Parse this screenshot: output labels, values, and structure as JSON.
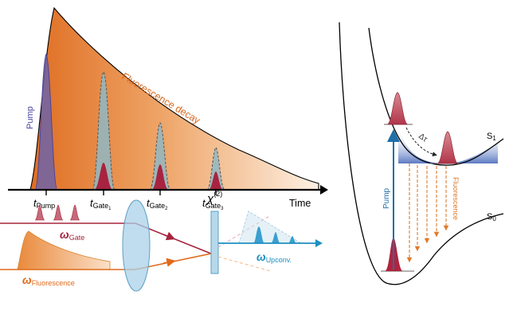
{
  "labels": {
    "pump": "Pump",
    "fluorescence_decay": "Fluorescence decay",
    "time": "Time",
    "t_symbol": "t",
    "omega_symbol": "ω",
    "chi_symbol": "χ",
    "chi_order": "(2)",
    "sub_pump": "Pump",
    "sub_gate1": "Gate",
    "idx1": "1",
    "sub_gate2": "Gate",
    "idx2": "2",
    "sub_gate3": "Gate",
    "idx3": "3",
    "sub_gate": "Gate",
    "sub_fluorescence": "Fluorescence",
    "sub_upconv": "Upconv.",
    "delta_tau": "Δτ",
    "s1": "S",
    "s1_idx": "1",
    "s0": "S",
    "s0_idx": "0",
    "pump_arrow": "Pump",
    "fluorescence_arrows": "Fluorescence"
  },
  "colors": {
    "decay_dark": "#e0722a",
    "decay_light": "#fbe3cd",
    "pump": "#6d64a8",
    "gate": "#a8233f",
    "gate_envelope": "#8fb7c4",
    "beam_gate": "#a8233f",
    "beam_fluorescence": "#e06a1a",
    "upconv": "#1f8fc0",
    "lens": "#a9d1e8",
    "crystal": "#a9d1e8",
    "pump_arrow": "#1f6fa8",
    "fluor_arrow": "#e07a2a",
    "s1_band": "#3f63b8",
    "axis": "#000000"
  }
}
